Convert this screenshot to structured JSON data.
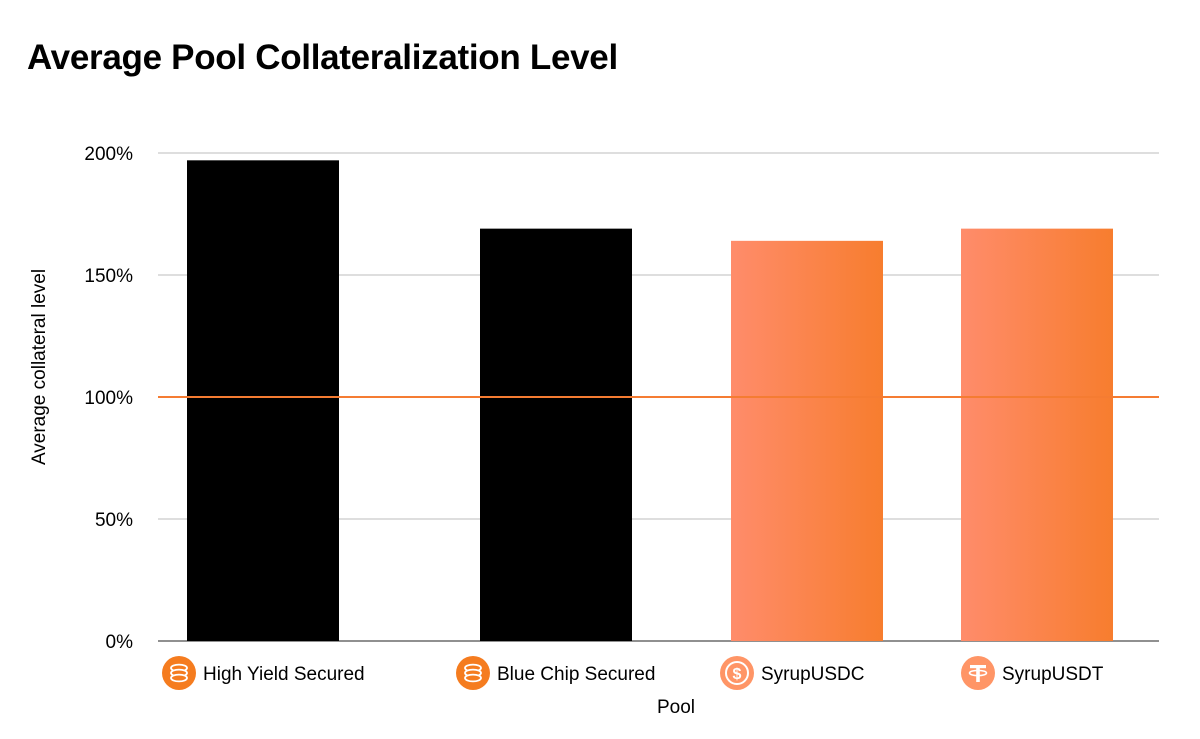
{
  "title": "Average Pool Collateralization Level",
  "chart_data": {
    "type": "bar",
    "title": "Average Pool Collateralization Level",
    "xlabel": "Pool",
    "ylabel": "Average collateral level",
    "categories": [
      "High Yield Secured",
      "Blue Chip Secured",
      "SyrupUSDC",
      "SyrupUSDT"
    ],
    "category_icons": [
      "coin-stack-icon",
      "coin-stack-icon",
      "usdc-icon",
      "usdt-icon"
    ],
    "values": [
      197,
      169,
      164,
      169
    ],
    "value_unit": "%",
    "ylim": [
      0,
      200
    ],
    "yticks": [
      0,
      50,
      100,
      150,
      200
    ],
    "ytick_labels": [
      "0%",
      "50%",
      "100%",
      "150%",
      "200%"
    ],
    "reference_line": {
      "value": 100,
      "color": "#f57c32"
    },
    "bar_styles": [
      "dark",
      "dark",
      "gradient",
      "gradient"
    ],
    "colors": {
      "dark_bar": "#000000",
      "gradient_start": "#ff8c6b",
      "gradient_end": "#f77d2e",
      "grid": "#bdbdbd",
      "reference": "#f57c32",
      "icon_fill": "#f57c1f",
      "icon_fill_light": "#ff9566"
    },
    "grid": true,
    "legend": "none"
  }
}
